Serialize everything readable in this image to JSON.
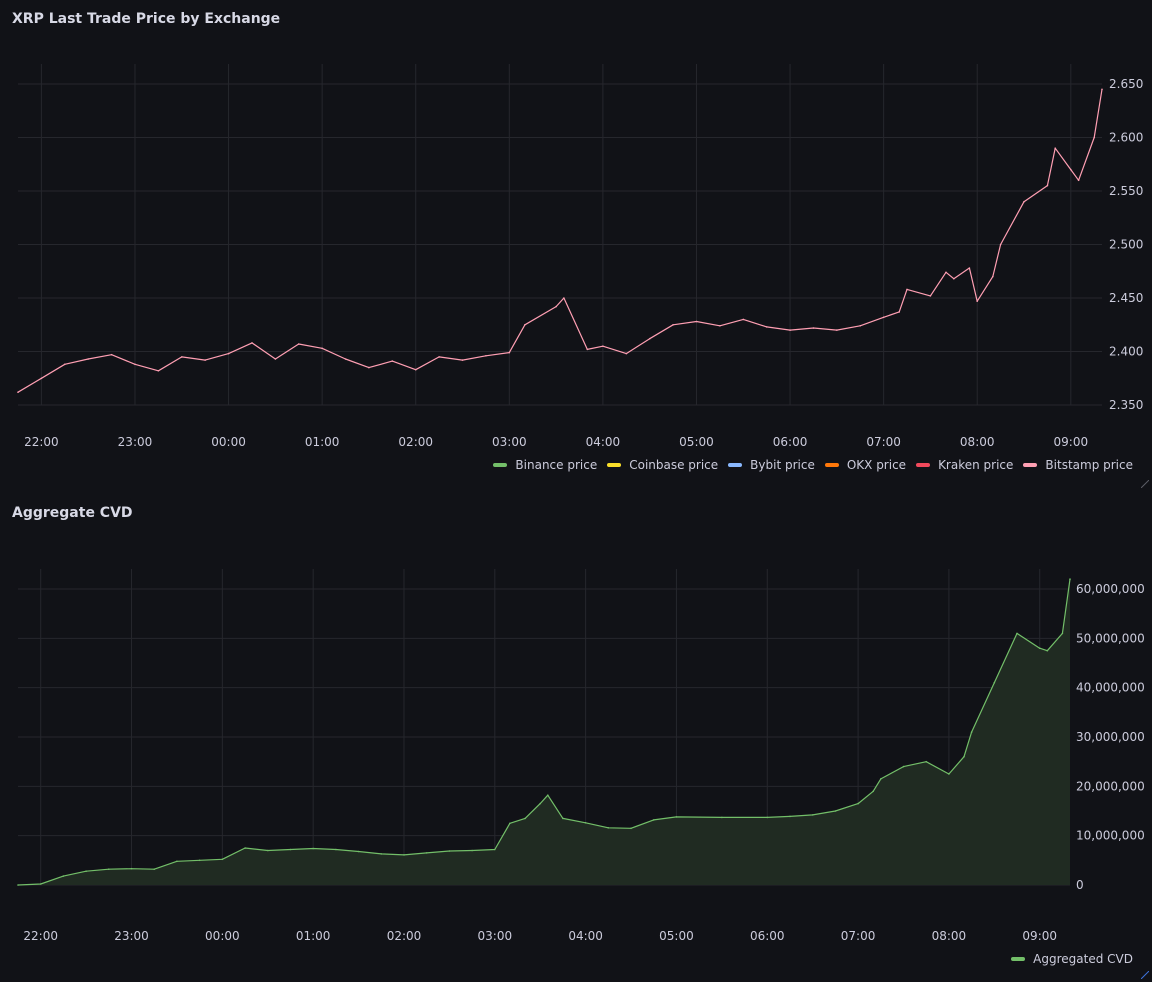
{
  "colors": {
    "background": "#111217",
    "grid": "#26272d",
    "cvd_line": "#73bf69",
    "cvd_fill": "#202b22"
  },
  "chart_data": [
    {
      "type": "line",
      "title": "XRP Last Trade Price by Exchange",
      "x_ticks": [
        "22:00",
        "23:00",
        "00:00",
        "01:00",
        "02:00",
        "03:00",
        "04:00",
        "05:00",
        "06:00",
        "07:00",
        "08:00",
        "09:00"
      ],
      "y_ticks": [
        "2.350",
        "2.400",
        "2.450",
        "2.500",
        "2.550",
        "2.600",
        "2.650"
      ],
      "ylim": [
        2.35,
        2.65
      ],
      "y_axis_side": "right",
      "legend_position": "bottom-right",
      "series": [
        {
          "name": "Binance price",
          "color": "#73bf69",
          "values": []
        },
        {
          "name": "Coinbase price",
          "color": "#fade2a",
          "values": []
        },
        {
          "name": "Bybit price",
          "color": "#8ab8ff",
          "values": []
        },
        {
          "name": "OKX price",
          "color": "#ff780a",
          "values": []
        },
        {
          "name": "Kraken price",
          "color": "#f2495c",
          "values": []
        },
        {
          "name": "Bitstamp price",
          "color": "#ff9fb3",
          "x": [
            "21:45",
            "22:00",
            "22:15",
            "22:30",
            "22:45",
            "23:00",
            "23:15",
            "23:30",
            "23:45",
            "00:00",
            "00:15",
            "00:30",
            "00:45",
            "01:00",
            "01:15",
            "01:30",
            "01:45",
            "02:00",
            "02:15",
            "02:30",
            "02:45",
            "03:00",
            "03:10",
            "03:30",
            "03:35",
            "03:50",
            "04:00",
            "04:15",
            "04:30",
            "04:45",
            "05:00",
            "05:15",
            "05:30",
            "05:45",
            "06:00",
            "06:15",
            "06:30",
            "06:45",
            "07:00",
            "07:10",
            "07:15",
            "07:30",
            "07:40",
            "07:45",
            "07:55",
            "08:00",
            "08:10",
            "08:15",
            "08:30",
            "08:45",
            "08:50",
            "09:00",
            "09:05",
            "09:15",
            "09:20"
          ],
          "values": [
            2.362,
            2.375,
            2.388,
            2.393,
            2.397,
            2.388,
            2.382,
            2.395,
            2.392,
            2.398,
            2.408,
            2.393,
            2.407,
            2.403,
            2.393,
            2.385,
            2.391,
            2.383,
            2.395,
            2.392,
            2.396,
            2.399,
            2.425,
            2.442,
            2.45,
            2.402,
            2.405,
            2.398,
            2.412,
            2.425,
            2.428,
            2.424,
            2.43,
            2.423,
            2.42,
            2.422,
            2.42,
            2.424,
            2.432,
            2.437,
            2.458,
            2.452,
            2.474,
            2.468,
            2.478,
            2.447,
            2.47,
            2.5,
            2.54,
            2.555,
            2.59,
            2.57,
            2.56,
            2.6,
            2.645
          ]
        }
      ]
    },
    {
      "type": "area",
      "title": "Aggregate CVD",
      "x_ticks": [
        "22:00",
        "23:00",
        "00:00",
        "01:00",
        "02:00",
        "03:00",
        "04:00",
        "05:00",
        "06:00",
        "07:00",
        "08:00",
        "09:00"
      ],
      "y_ticks": [
        "0",
        "10,000,000",
        "20,000,000",
        "30,000,000",
        "40,000,000",
        "50,000,000",
        "60,000,000"
      ],
      "ylim": [
        0,
        60000000
      ],
      "y_axis_side": "right",
      "legend_position": "bottom-right",
      "series": [
        {
          "name": "Aggregated CVD",
          "color": "#73bf69",
          "x": [
            "21:45",
            "22:00",
            "22:15",
            "22:30",
            "22:45",
            "23:00",
            "23:15",
            "23:30",
            "23:45",
            "00:00",
            "00:15",
            "00:30",
            "00:45",
            "01:00",
            "01:15",
            "01:30",
            "01:45",
            "02:00",
            "02:15",
            "02:30",
            "02:45",
            "03:00",
            "03:10",
            "03:20",
            "03:30",
            "03:35",
            "03:45",
            "04:00",
            "04:15",
            "04:30",
            "04:45",
            "05:00",
            "05:30",
            "06:00",
            "06:15",
            "06:30",
            "06:45",
            "07:00",
            "07:10",
            "07:15",
            "07:30",
            "07:45",
            "08:00",
            "08:10",
            "08:15",
            "08:30",
            "08:45",
            "09:00",
            "09:05",
            "09:15",
            "09:20"
          ],
          "values": [
            0,
            200000,
            1800000,
            2800000,
            3200000,
            3300000,
            3200000,
            4800000,
            5000000,
            5200000,
            7500000,
            7000000,
            7200000,
            7400000,
            7200000,
            6800000,
            6300000,
            6100000,
            6500000,
            6900000,
            7000000,
            7200000,
            12500000,
            13500000,
            16500000,
            18200000,
            13500000,
            12600000,
            11600000,
            11500000,
            13200000,
            13800000,
            13700000,
            13700000,
            13900000,
            14200000,
            15000000,
            16500000,
            19000000,
            21500000,
            24000000,
            25000000,
            22500000,
            26000000,
            31000000,
            41000000,
            51000000,
            48000000,
            47500000,
            51000000,
            62000000
          ]
        }
      ]
    }
  ]
}
